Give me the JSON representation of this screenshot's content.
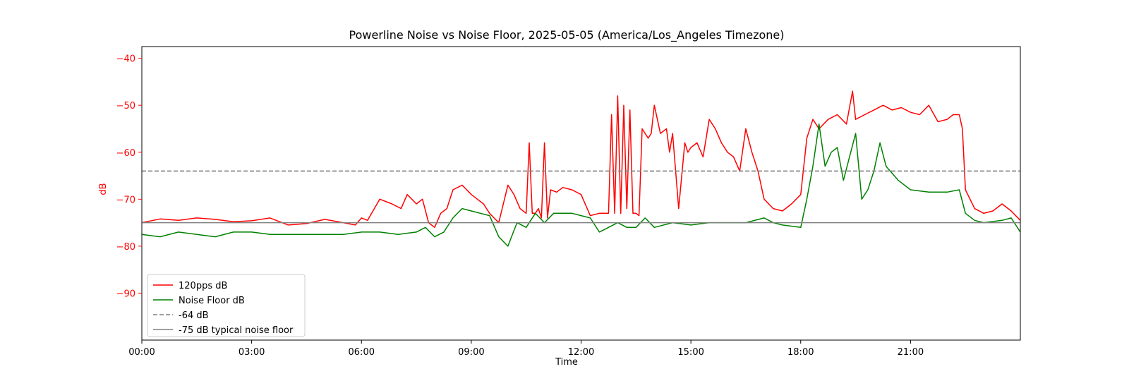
{
  "chart_data": {
    "type": "line",
    "title": "Powerline Noise vs Noise Floor, 2025-05-05 (America/Los_Angeles Timezone)",
    "xlabel": "Time",
    "ylabel": "dB",
    "ylabel_color": "#ff0000",
    "xlim": [
      "00:00",
      "24:00"
    ],
    "ylim": [
      -100,
      -37.5
    ],
    "x_ticks": [
      "00:00",
      "03:00",
      "06:00",
      "09:00",
      "12:00",
      "15:00",
      "18:00",
      "21:00"
    ],
    "y_ticks": [
      -40,
      -50,
      -60,
      -70,
      -80,
      -90
    ],
    "y_tick_labels": [
      "−40",
      "−50",
      "−60",
      "−70",
      "−80",
      "−90"
    ],
    "grid": false,
    "legend_position": "lower-left",
    "series": [
      {
        "name": "120pps dB",
        "color": "#ff0000",
        "style": "solid",
        "x": [
          "00:00",
          "00:30",
          "01:00",
          "01:30",
          "02:00",
          "02:30",
          "03:00",
          "03:30",
          "04:00",
          "04:30",
          "05:00",
          "05:30",
          "05:50",
          "06:00",
          "06:10",
          "06:30",
          "06:50",
          "07:05",
          "07:15",
          "07:30",
          "07:40",
          "07:50",
          "08:00",
          "08:10",
          "08:20",
          "08:30",
          "08:45",
          "09:00",
          "09:10",
          "09:20",
          "09:30",
          "09:45",
          "10:00",
          "10:10",
          "10:20",
          "10:30",
          "10:35",
          "10:40",
          "10:45",
          "10:50",
          "10:55",
          "11:00",
          "11:05",
          "11:10",
          "11:20",
          "11:30",
          "11:45",
          "12:00",
          "12:15",
          "12:30",
          "12:45",
          "12:50",
          "12:55",
          "13:00",
          "13:05",
          "13:10",
          "13:15",
          "13:20",
          "13:25",
          "13:30",
          "13:35",
          "13:40",
          "13:50",
          "13:55",
          "14:00",
          "14:10",
          "14:20",
          "14:25",
          "14:30",
          "14:40",
          "14:50",
          "14:55",
          "15:00",
          "15:10",
          "15:20",
          "15:30",
          "15:40",
          "15:50",
          "16:00",
          "16:10",
          "16:20",
          "16:30",
          "16:40",
          "16:45",
          "16:50",
          "17:00",
          "17:15",
          "17:30",
          "17:45",
          "18:00",
          "18:10",
          "18:20",
          "18:30",
          "18:45",
          "19:00",
          "19:15",
          "19:25",
          "19:30",
          "19:45",
          "20:00",
          "20:15",
          "20:30",
          "20:45",
          "21:00",
          "21:15",
          "21:30",
          "21:45",
          "22:00",
          "22:10",
          "22:20",
          "22:25",
          "22:30",
          "22:45",
          "23:00",
          "23:15",
          "23:30",
          "23:45",
          "24:00"
        ],
        "values": [
          -75.0,
          -74.2,
          -74.5,
          -74.0,
          -74.3,
          -74.8,
          -74.6,
          -74.0,
          -75.5,
          -75.2,
          -74.3,
          -75.0,
          -75.5,
          -74.0,
          -74.5,
          -70.0,
          -71.0,
          -72.0,
          -69.0,
          -71.0,
          -70.0,
          -75.0,
          -76.0,
          -73.0,
          -72.0,
          -68.0,
          -67.0,
          -69.0,
          -70.0,
          -71.0,
          -73.0,
          -75.0,
          -67.0,
          -69.0,
          -72.0,
          -73.0,
          -58.0,
          -73.0,
          -73.0,
          -72.0,
          -74.0,
          -58.0,
          -74.0,
          -68.0,
          -68.5,
          -67.5,
          -68.0,
          -69.0,
          -73.5,
          -73.0,
          -73.0,
          -52.0,
          -73.0,
          -48.0,
          -73.0,
          -50.0,
          -72.0,
          -51.0,
          -73.0,
          -73.0,
          -73.5,
          -55.0,
          -57.0,
          -56.0,
          -50.0,
          -56.0,
          -55.0,
          -60.0,
          -56.0,
          -72.0,
          -58.0,
          -60.0,
          -59.0,
          -58.0,
          -61.0,
          -53.0,
          -55.0,
          -58.0,
          -60.0,
          -61.0,
          -64.0,
          -55.0,
          -60.0,
          -62.0,
          -64.0,
          -70.0,
          -72.0,
          -72.5,
          -71.0,
          -69.0,
          -57.0,
          -53.0,
          -55.0,
          -53.0,
          -52.0,
          -54.0,
          -47.0,
          -53.0,
          -52.0,
          -51.0,
          -50.0,
          -51.0,
          -50.5,
          -51.5,
          -52.0,
          -50.0,
          -53.5,
          -53.0,
          -52.0,
          -52.0,
          -55.0,
          -68.0,
          -72.0,
          -73.0,
          -72.5,
          -71.0,
          -72.5,
          -74.5
        ]
      },
      {
        "name": "Noise Floor dB",
        "color": "#008000",
        "style": "solid",
        "x": [
          "00:00",
          "00:30",
          "01:00",
          "01:30",
          "02:00",
          "02:30",
          "03:00",
          "03:30",
          "04:00",
          "04:30",
          "05:00",
          "05:30",
          "06:00",
          "06:30",
          "07:00",
          "07:30",
          "07:45",
          "08:00",
          "08:15",
          "08:30",
          "08:45",
          "09:00",
          "09:15",
          "09:30",
          "09:45",
          "10:00",
          "10:15",
          "10:30",
          "10:45",
          "11:00",
          "11:15",
          "11:30",
          "11:45",
          "12:00",
          "12:15",
          "12:30",
          "12:45",
          "13:00",
          "13:15",
          "13:30",
          "13:45",
          "14:00",
          "14:30",
          "15:00",
          "15:30",
          "16:00",
          "16:30",
          "17:00",
          "17:15",
          "17:30",
          "18:00",
          "18:10",
          "18:20",
          "18:30",
          "18:40",
          "18:50",
          "19:00",
          "19:10",
          "19:20",
          "19:30",
          "19:40",
          "19:50",
          "20:00",
          "20:10",
          "20:20",
          "20:40",
          "21:00",
          "21:30",
          "22:00",
          "22:20",
          "22:30",
          "22:45",
          "23:00",
          "23:30",
          "23:45",
          "24:00"
        ],
        "values": [
          -77.5,
          -78.0,
          -77.0,
          -77.5,
          -78.0,
          -77.0,
          -77.0,
          -77.5,
          -77.5,
          -77.5,
          -77.5,
          -77.5,
          -77.0,
          -77.0,
          -77.5,
          -77.0,
          -76.0,
          -78.0,
          -77.0,
          -74.0,
          -72.0,
          -72.5,
          -73.0,
          -73.5,
          -78.0,
          -80.0,
          -75.0,
          -76.0,
          -73.0,
          -75.0,
          -73.0,
          -73.0,
          -73.0,
          -73.5,
          -74.0,
          -77.0,
          -76.0,
          -75.0,
          -76.0,
          -76.0,
          -74.0,
          -76.0,
          -75.0,
          -75.5,
          -75.0,
          -75.0,
          -75.0,
          -74.0,
          -75.0,
          -75.5,
          -76.0,
          -70.0,
          -63.0,
          -54.0,
          -63.0,
          -60.0,
          -59.0,
          -66.0,
          -61.0,
          -56.0,
          -70.0,
          -68.0,
          -64.0,
          -58.0,
          -63.0,
          -66.0,
          -68.0,
          -68.5,
          -68.5,
          -68.0,
          -73.0,
          -74.5,
          -75.0,
          -74.5,
          -74.0,
          -77.0
        ]
      },
      {
        "name": "-64 dB",
        "color": "#808080",
        "style": "dashed",
        "x": [
          "00:00",
          "24:00"
        ],
        "values": [
          -64,
          -64
        ]
      },
      {
        "name": "-75 dB typical noise floor",
        "color": "#808080",
        "style": "solid",
        "x": [
          "00:00",
          "24:00"
        ],
        "values": [
          -75,
          -75
        ]
      }
    ]
  }
}
